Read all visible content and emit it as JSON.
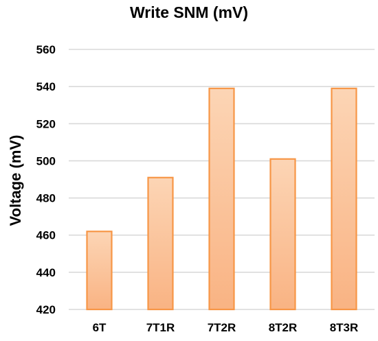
{
  "chart_data": {
    "type": "bar",
    "title": "Write SNM (mV)",
    "xlabel": "",
    "ylabel": "Voltage (mV)",
    "categories": [
      "6T",
      "7T1R",
      "7T2R",
      "8T2R",
      "8T3R"
    ],
    "values": [
      462,
      491,
      539,
      501,
      539
    ],
    "ylim": [
      420,
      560
    ],
    "yticks": [
      "420",
      "440",
      "460",
      "480",
      "500",
      "520",
      "540",
      "560"
    ],
    "grid": true,
    "legend": "none",
    "colors": {
      "bar_fill_top": "#fcd5b5",
      "bar_fill_bottom": "#f9b383",
      "bar_stroke": "#f79646",
      "grid": "#d9d9d9"
    }
  }
}
